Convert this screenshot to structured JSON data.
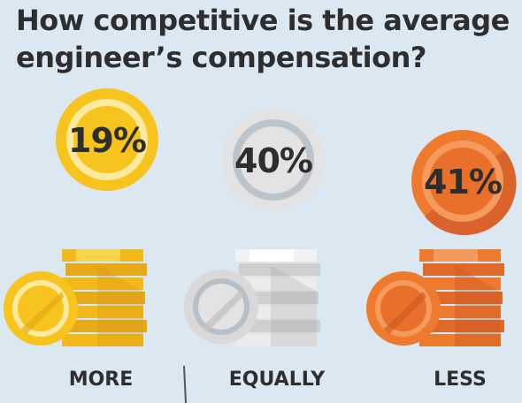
{
  "title": {
    "line1": "How competitive is the average",
    "line2": "engineer’s compensation?"
  },
  "colors": {
    "background": "#dbe8f2",
    "gold": "#f6c41c",
    "silver": "#d9d9d9",
    "copper": "#ee7a2e",
    "text": "#2e2e2e"
  },
  "chart_data": {
    "type": "pie",
    "categories": [
      "MORE",
      "EQUALLY",
      "LESS"
    ],
    "values": [
      19,
      40,
      41
    ],
    "value_labels": [
      "19%",
      "40%",
      "41%"
    ]
  }
}
